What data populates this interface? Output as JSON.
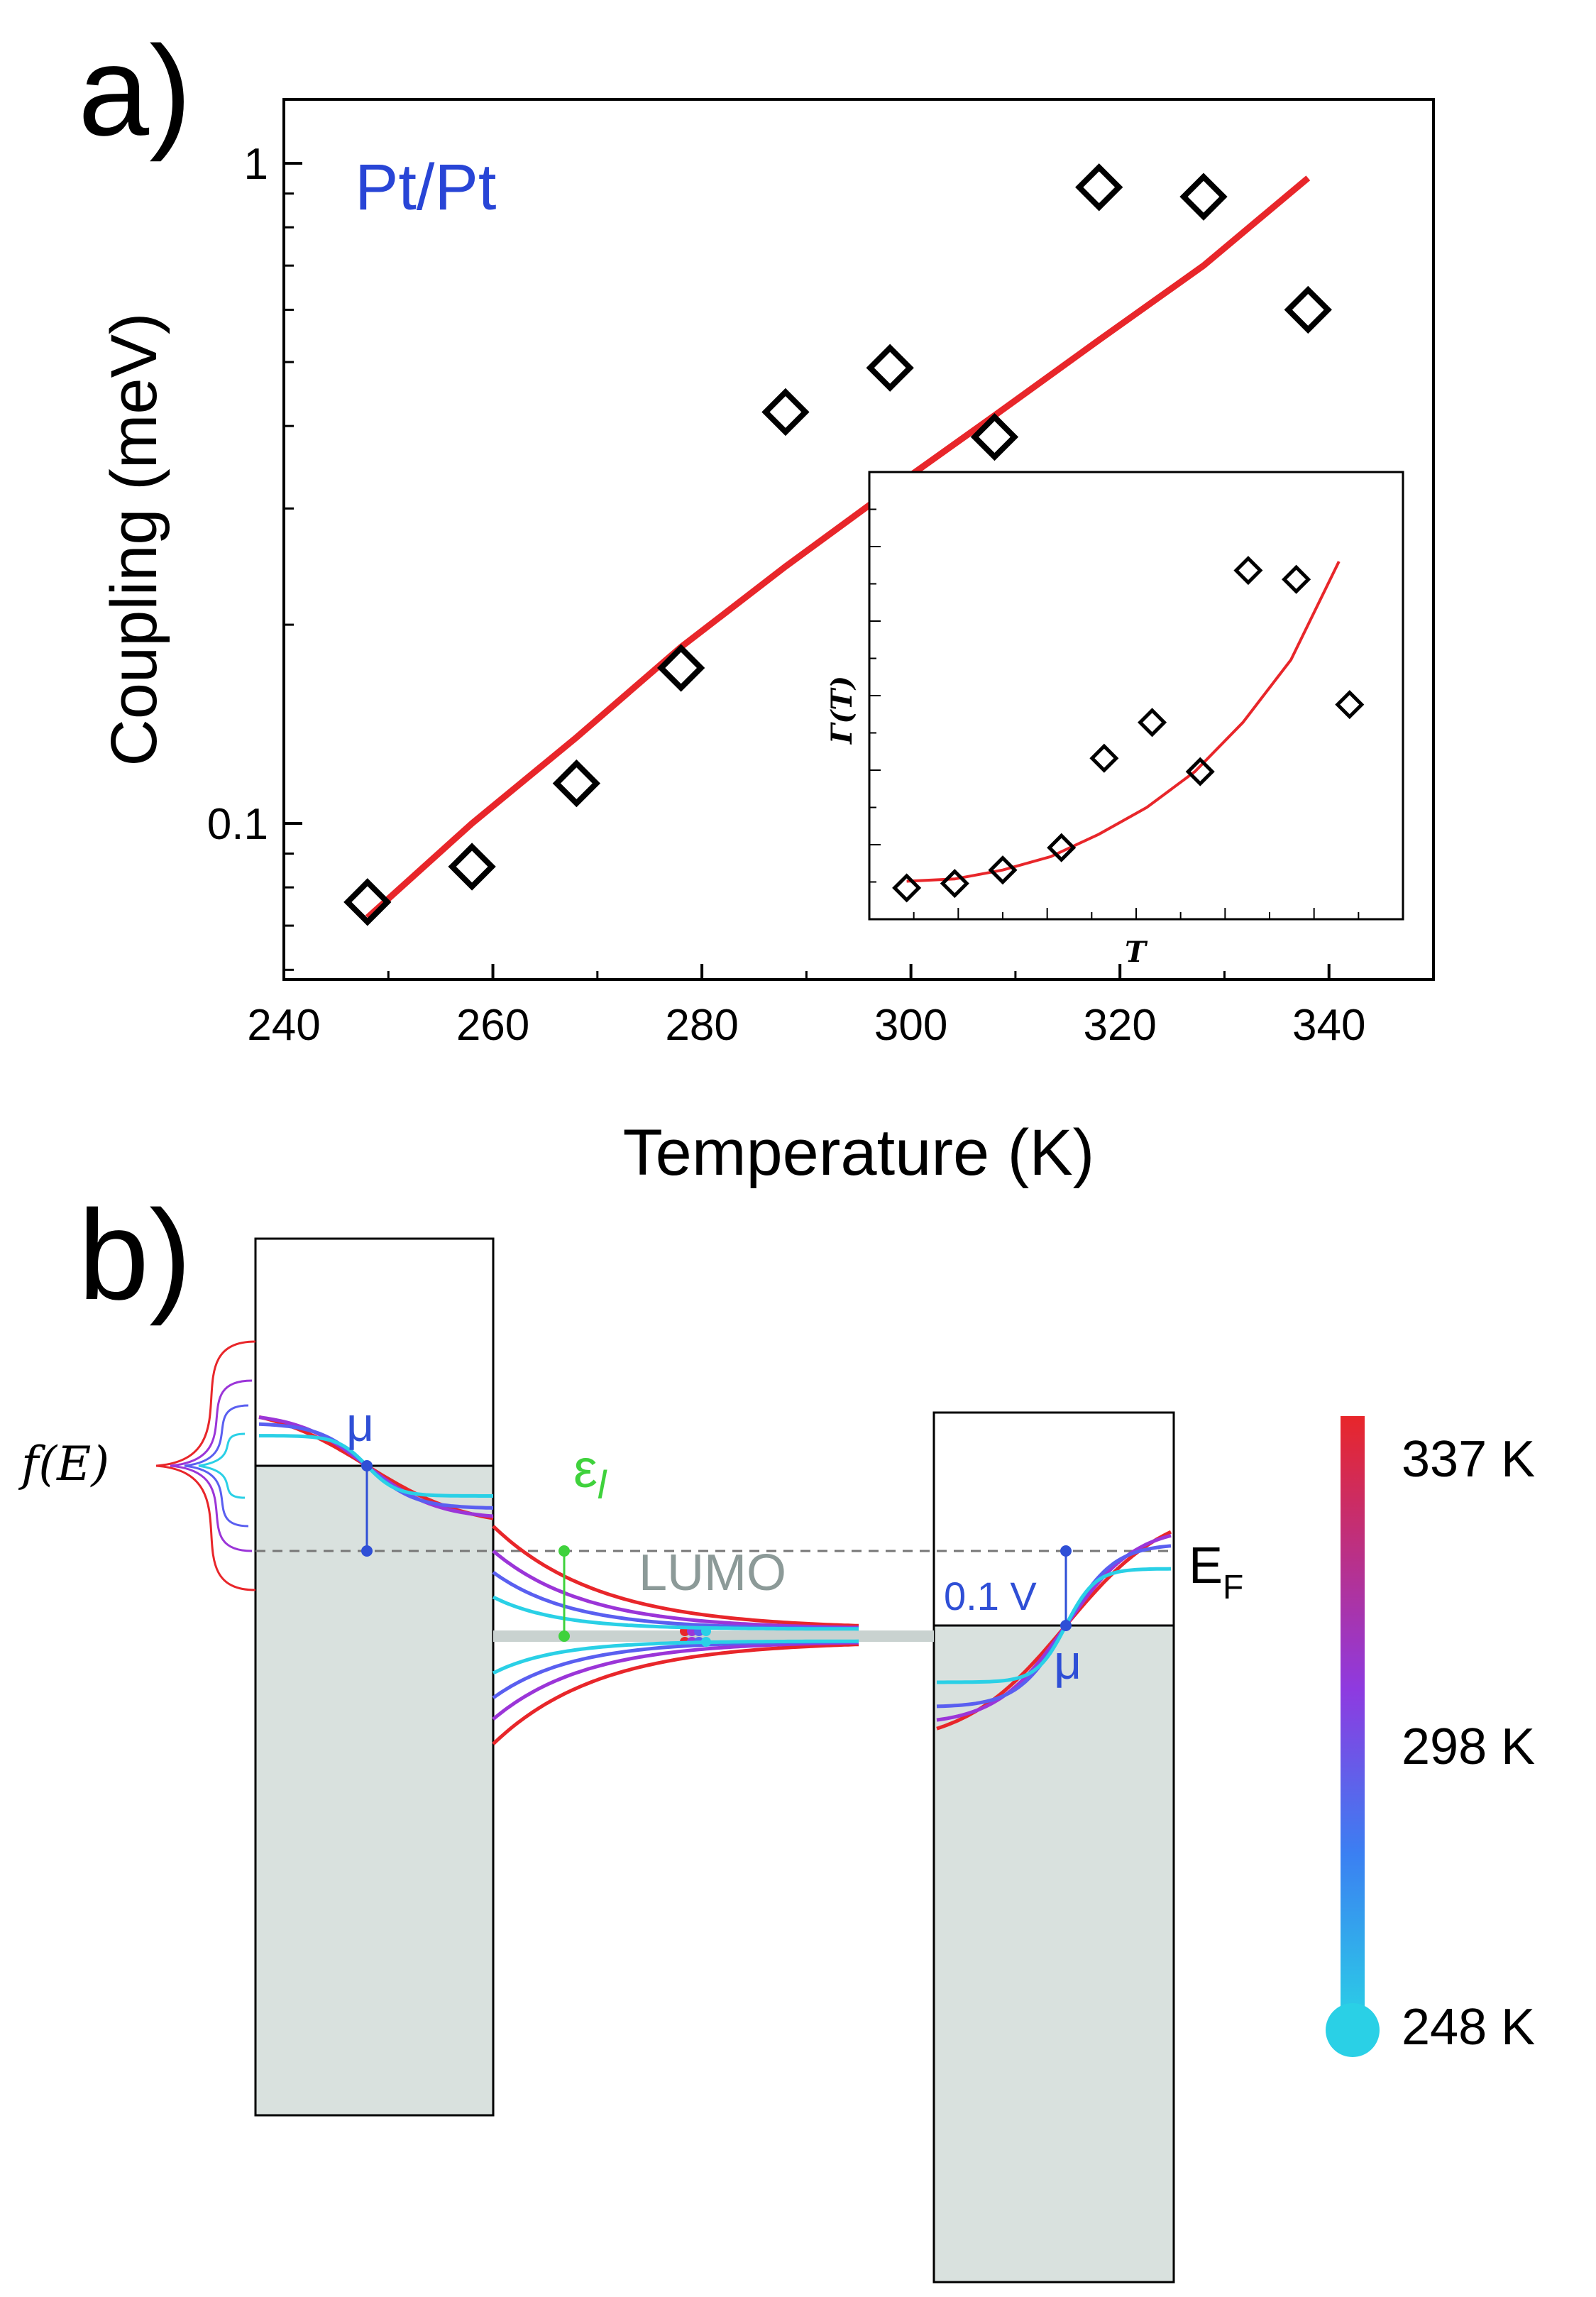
{
  "panels": {
    "a": {
      "letter": "a)"
    },
    "b": {
      "letter": "b)"
    }
  },
  "chart_data": [
    {
      "type": "scatter",
      "title": "",
      "annotation": "Pt/Pt",
      "xlabel": "Temperature (K)",
      "ylabel": "Coupling (meV)",
      "xlim": [
        240,
        350
      ],
      "ylim": [
        0.058,
        1.25
      ],
      "yscale": "log",
      "xticks": [
        240,
        260,
        280,
        300,
        320,
        340
      ],
      "yticks": [
        0.1,
        1
      ],
      "ytick_labels": [
        "0.1",
        "1"
      ],
      "grid": false,
      "legend": "none",
      "marker_color": "#000000",
      "fit_color": "#e8262a",
      "annotation_color": "#2845d6",
      "series": [
        {
          "marker": "diamond",
          "x": [
            248,
            258,
            268,
            278,
            288,
            298,
            308,
            318,
            328,
            338
          ],
          "y": [
            0.076,
            0.086,
            0.115,
            0.172,
            0.42,
            0.49,
            0.385,
            0.92,
            0.89,
            0.6
          ]
        },
        {
          "line": true,
          "x": [
            248,
            258,
            268,
            278,
            288,
            298,
            308,
            318,
            328,
            338
          ],
          "y": [
            0.072,
            0.1,
            0.135,
            0.185,
            0.245,
            0.32,
            0.415,
            0.54,
            0.7,
            0.95
          ]
        }
      ]
    },
    {
      "type": "scatter",
      "title": "",
      "xlabel": "T",
      "ylabel": "Γ(T)",
      "xlim": [
        0,
        1
      ],
      "ylim": [
        0,
        1
      ],
      "grid": false,
      "legend": "none",
      "series": [
        {
          "marker": "diamond",
          "x": [
            0.07,
            0.16,
            0.25,
            0.36,
            0.44,
            0.53,
            0.62,
            0.71,
            0.8,
            0.9
          ],
          "y": [
            0.07,
            0.08,
            0.11,
            0.16,
            0.36,
            0.44,
            0.33,
            0.78,
            0.76,
            0.48
          ]
        },
        {
          "line": true,
          "x": [
            0.07,
            0.16,
            0.25,
            0.34,
            0.43,
            0.52,
            0.61,
            0.7,
            0.79,
            0.88
          ],
          "y": [
            0.085,
            0.09,
            0.11,
            0.14,
            0.19,
            0.25,
            0.33,
            0.44,
            0.58,
            0.8
          ]
        }
      ]
    }
  ],
  "diagram": {
    "fe_label": "f(E)",
    "mu_left": "μ",
    "mu_right": "μ",
    "epsilon": "ε",
    "epsilon_sub": "l",
    "lumo": "LUMO",
    "ef_label": "E",
    "ef_sub": "F",
    "bias": "0.1 V",
    "colorbar_labels": [
      "337 K",
      "298 K",
      "248 K"
    ],
    "curve_colors": [
      "#e8262a",
      "#9b35d8",
      "#5a5ff0",
      "#2ad0e6"
    ],
    "fill_color": "#d9e1de",
    "lumo_color": "#8c9a98",
    "mu_color": "#2f4fd6",
    "epsilon_color": "#3fd23c"
  }
}
